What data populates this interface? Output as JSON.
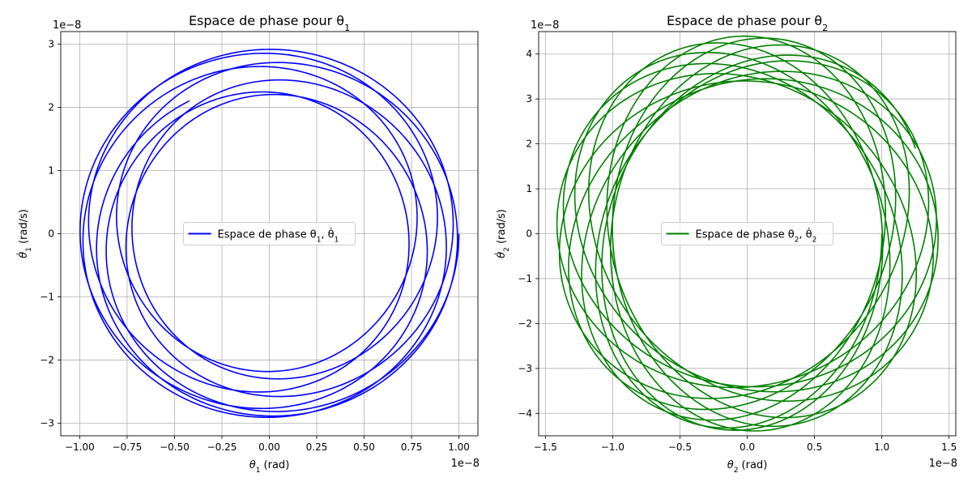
{
  "chart_data": [
    {
      "type": "line",
      "title": "Espace de phase pour θ₁",
      "title_main": "Espace de phase pour θ",
      "title_sub": "1",
      "xlabel": "θ₁ (rad)",
      "xlabel_sym": "θ",
      "xlabel_sub": "1",
      "xlabel_unit": " (rad)",
      "ylabel": "θ̇₁ (rad/s)",
      "ylabel_sym": "θ̇",
      "ylabel_sub": "1",
      "ylabel_unit": " (rad/s)",
      "x_offset_label": "1e−8",
      "y_offset_label": "1e−8",
      "xlim": [
        -1.1,
        1.1
      ],
      "ylim": [
        -3.2,
        3.2
      ],
      "xticks": [
        -1.0,
        -0.75,
        -0.5,
        -0.25,
        0.0,
        0.25,
        0.5,
        0.75,
        1.0
      ],
      "xtick_labels": [
        "−1.00",
        "−0.75",
        "−0.50",
        "−0.25",
        "0.00",
        "0.25",
        "0.50",
        "0.75",
        "1.00"
      ],
      "yticks": [
        -3,
        -2,
        -1,
        0,
        1,
        2,
        3
      ],
      "ytick_labels": [
        "−3",
        "−2",
        "−1",
        "0",
        "1",
        "2",
        "3"
      ],
      "grid": true,
      "legend_placement": "center",
      "color": "#0000ff",
      "series": [
        {
          "name": "Espace de phase θ₁, θ̇₁",
          "legend_text": "Espace de phase θ",
          "legend_sub": "1",
          "legend_sep": ", θ̇",
          "legend_sub2": "1",
          "model": {
            "a1": 0.86,
            "w1": 0.8,
            "a2": 0.14,
            "w2": 1.25,
            "b1": 2.55,
            "b2": 0.37,
            "t_max": 60,
            "t_min": 0
          }
        }
      ]
    },
    {
      "type": "line",
      "title": "Espace de phase pour θ₂",
      "title_main": "Espace de phase pour θ",
      "title_sub": "2",
      "xlabel": "θ₂ (rad)",
      "xlabel_sym": "θ",
      "xlabel_sub": "2",
      "xlabel_unit": " (rad)",
      "ylabel": "θ̇₂ (rad/s)",
      "ylabel_sym": "θ̇",
      "ylabel_sub": "2",
      "ylabel_unit": " (rad/s)",
      "x_offset_label": "1e−8",
      "y_offset_label": "1e−8",
      "xlim": [
        -1.55,
        1.55
      ],
      "ylim": [
        -4.5,
        4.5
      ],
      "xticks": [
        -1.5,
        -1.0,
        -0.5,
        0.0,
        0.5,
        1.0,
        1.5
      ],
      "xtick_labels": [
        "−1.5",
        "−1.0",
        "−0.5",
        "0.0",
        "0.5",
        "1.0",
        "1.5"
      ],
      "yticks": [
        -4,
        -3,
        -2,
        -1,
        0,
        1,
        2,
        3,
        4
      ],
      "ytick_labels": [
        "−4",
        "−3",
        "−2",
        "−1",
        "0",
        "1",
        "2",
        "3",
        "4"
      ],
      "grid": true,
      "legend_placement": "center",
      "color": "#008000",
      "series": [
        {
          "name": "Espace de phase θ₂, θ̇₂",
          "legend_text": "Espace de phase θ",
          "legend_sub": "2",
          "legend_sep": ", θ̇",
          "legend_sub2": "2",
          "model": {
            "a1": 1.21,
            "w1": 1.25,
            "a2": -0.21,
            "w2": 0.8,
            "b1": 3.9,
            "b2": 0.5,
            "t_max": 60,
            "t_min": 0
          }
        }
      ]
    }
  ]
}
